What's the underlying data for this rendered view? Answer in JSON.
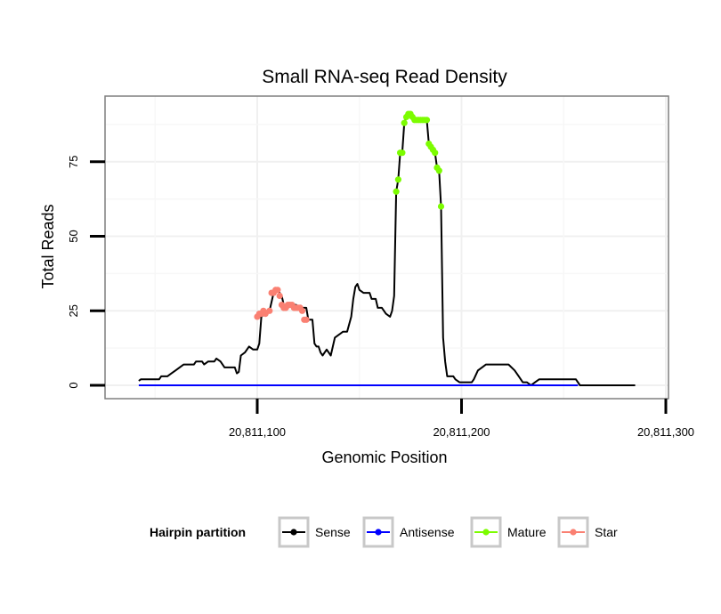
{
  "chart_data": {
    "type": "line",
    "title": "Small RNA-seq Read Density",
    "xlabel": "Genomic Position",
    "ylabel": "Total Reads",
    "xlim": [
      20811030,
      20811300
    ],
    "ylim": [
      -3,
      95
    ],
    "x_ticks": [
      20811100,
      20811200,
      20811300
    ],
    "x_tick_labels": [
      "20,811,100",
      "20,811,200",
      "20,811,300"
    ],
    "y_ticks": [
      0,
      25,
      50,
      75
    ],
    "y_tick_labels": [
      "0",
      "25",
      "50",
      "75"
    ],
    "grid": true,
    "legend": {
      "title": "Hairpin partition",
      "position": "bottom",
      "entries": [
        {
          "name": "Sense",
          "color": "#000000"
        },
        {
          "name": "Antisense",
          "color": "#0000FF"
        },
        {
          "name": "Mature",
          "color": "#7CFC00"
        },
        {
          "name": "Star",
          "color": "#FA8072"
        }
      ]
    },
    "series": [
      {
        "name": "Sense",
        "color": "#000000",
        "marker": false,
        "points": [
          [
            20811042,
            1.5
          ],
          [
            20811043,
            2
          ],
          [
            20811052,
            2
          ],
          [
            20811053,
            3
          ],
          [
            20811056,
            3
          ],
          [
            20811058,
            4
          ],
          [
            20811060,
            5
          ],
          [
            20811062,
            6
          ],
          [
            20811064,
            7
          ],
          [
            20811069,
            7
          ],
          [
            20811070,
            8
          ],
          [
            20811073,
            8
          ],
          [
            20811074,
            7
          ],
          [
            20811076,
            8
          ],
          [
            20811079,
            8
          ],
          [
            20811080,
            9
          ],
          [
            20811082,
            8
          ],
          [
            20811083,
            7
          ],
          [
            20811084,
            6
          ],
          [
            20811089,
            6
          ],
          [
            20811090,
            4
          ],
          [
            20811091,
            4.5
          ],
          [
            20811092,
            10
          ],
          [
            20811094,
            11
          ],
          [
            20811096,
            13
          ],
          [
            20811098,
            12
          ],
          [
            20811100,
            12
          ],
          [
            20811101,
            14
          ],
          [
            20811102,
            23
          ],
          [
            20811104,
            24
          ],
          [
            20811106,
            25
          ],
          [
            20811108,
            31
          ],
          [
            20811110,
            32
          ],
          [
            20811112,
            30
          ],
          [
            20811113,
            27
          ],
          [
            20811115,
            26
          ],
          [
            20811117,
            27
          ],
          [
            20811119,
            27
          ],
          [
            20811121,
            26
          ],
          [
            20811124,
            26
          ],
          [
            20811125,
            22
          ],
          [
            20811127,
            22
          ],
          [
            20811128,
            14
          ],
          [
            20811129,
            13
          ],
          [
            20811130,
            13
          ],
          [
            20811131,
            11
          ],
          [
            20811132,
            10
          ],
          [
            20811134,
            12
          ],
          [
            20811136,
            10
          ],
          [
            20811138,
            16
          ],
          [
            20811140,
            17
          ],
          [
            20811142,
            18
          ],
          [
            20811144,
            18
          ],
          [
            20811146,
            23
          ],
          [
            20811147,
            29
          ],
          [
            20811148,
            33
          ],
          [
            20811149,
            34
          ],
          [
            20811150,
            32
          ],
          [
            20811152,
            31
          ],
          [
            20811155,
            31
          ],
          [
            20811156,
            29
          ],
          [
            20811158,
            29
          ],
          [
            20811159,
            26
          ],
          [
            20811161,
            26
          ],
          [
            20811163,
            24
          ],
          [
            20811165,
            23
          ],
          [
            20811166,
            25
          ],
          [
            20811167,
            30
          ],
          [
            20811168,
            65
          ],
          [
            20811169,
            69
          ],
          [
            20811170,
            78
          ],
          [
            20811171,
            78
          ],
          [
            20811172,
            88
          ],
          [
            20811173,
            90
          ],
          [
            20811174,
            91
          ],
          [
            20811175,
            91
          ],
          [
            20811176,
            90
          ],
          [
            20811177,
            89
          ],
          [
            20811181,
            89
          ],
          [
            20811183,
            89
          ],
          [
            20811184,
            81
          ],
          [
            20811185,
            80
          ],
          [
            20811186,
            79
          ],
          [
            20811187,
            78
          ],
          [
            20811188,
            73
          ],
          [
            20811189,
            72
          ],
          [
            20811190,
            60
          ],
          [
            20811191,
            16
          ],
          [
            20811192,
            8
          ],
          [
            20811193,
            3
          ],
          [
            20811196,
            3
          ],
          [
            20811197,
            2
          ],
          [
            20811199,
            1
          ],
          [
            20811205,
            1
          ],
          [
            20811206,
            2
          ],
          [
            20811208,
            5
          ],
          [
            20811210,
            6
          ],
          [
            20811212,
            7
          ],
          [
            20811217,
            7
          ],
          [
            20811223,
            7
          ],
          [
            20811226,
            5
          ],
          [
            20811228,
            3
          ],
          [
            20811230,
            1
          ],
          [
            20811232,
            1
          ],
          [
            20811234,
            0
          ],
          [
            20811236,
            1
          ],
          [
            20811238,
            2
          ],
          [
            20811250,
            2
          ],
          [
            20811256,
            2
          ],
          [
            20811258,
            0
          ],
          [
            20811285,
            0
          ]
        ]
      },
      {
        "name": "Antisense",
        "color": "#0000FF",
        "marker": false,
        "points": [
          [
            20811042,
            0
          ],
          [
            20811257,
            0
          ]
        ]
      },
      {
        "name": "Mature",
        "color": "#7CFC00",
        "marker": true,
        "points": [
          [
            20811168,
            65
          ],
          [
            20811169,
            69
          ],
          [
            20811170,
            78
          ],
          [
            20811171,
            78
          ],
          [
            20811172,
            88
          ],
          [
            20811173,
            90
          ],
          [
            20811174,
            91
          ],
          [
            20811175,
            91
          ],
          [
            20811176,
            90
          ],
          [
            20811177,
            89
          ],
          [
            20811178,
            89
          ],
          [
            20811179,
            89
          ],
          [
            20811180,
            89
          ],
          [
            20811181,
            89
          ],
          [
            20811182,
            89
          ],
          [
            20811183,
            89
          ],
          [
            20811184,
            81
          ],
          [
            20811185,
            80
          ],
          [
            20811186,
            79
          ],
          [
            20811187,
            78
          ],
          [
            20811188,
            73
          ],
          [
            20811189,
            72
          ],
          [
            20811190,
            60
          ]
        ]
      },
      {
        "name": "Star",
        "color": "#FA8072",
        "marker": true,
        "points": [
          [
            20811100,
            23
          ],
          [
            20811101,
            24
          ],
          [
            20811102,
            24
          ],
          [
            20811103,
            25
          ],
          [
            20811104,
            24
          ],
          [
            20811106,
            25
          ],
          [
            20811107,
            31
          ],
          [
            20811108,
            31
          ],
          [
            20811109,
            32
          ],
          [
            20811110,
            32
          ],
          [
            20811111,
            30
          ],
          [
            20811112,
            27
          ],
          [
            20811113,
            26
          ],
          [
            20811114,
            26
          ],
          [
            20811115,
            27
          ],
          [
            20811116,
            27
          ],
          [
            20811117,
            27
          ],
          [
            20811118,
            26
          ],
          [
            20811119,
            26
          ],
          [
            20811120,
            26
          ],
          [
            20811121,
            26
          ],
          [
            20811122,
            25
          ],
          [
            20811123,
            22
          ],
          [
            20811124,
            22
          ]
        ]
      }
    ]
  }
}
